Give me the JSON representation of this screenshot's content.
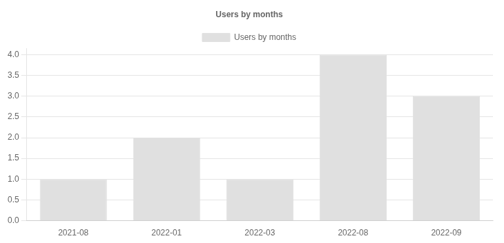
{
  "chart_data": {
    "type": "bar",
    "title": "Users by months",
    "categories": [
      "2021-08",
      "2022-01",
      "2022-03",
      "2022-08",
      "2022-09"
    ],
    "series": [
      {
        "name": "Users by months",
        "color": "#e0e0e0",
        "values": [
          1,
          2,
          1,
          4,
          3
        ]
      }
    ],
    "ylim": [
      0,
      4.15
    ],
    "yticks": [
      {
        "value": 0,
        "label": "0.0"
      },
      0.5,
      {
        "value": 1.0,
        "label": "1.0"
      },
      1.5,
      {
        "value": 2.0,
        "label": "2.0"
      },
      2.5,
      {
        "value": 3.0,
        "label": "3.0"
      },
      3.5,
      {
        "value": 4.0,
        "label": "4.0"
      }
    ],
    "grid": true,
    "legend": "top"
  }
}
